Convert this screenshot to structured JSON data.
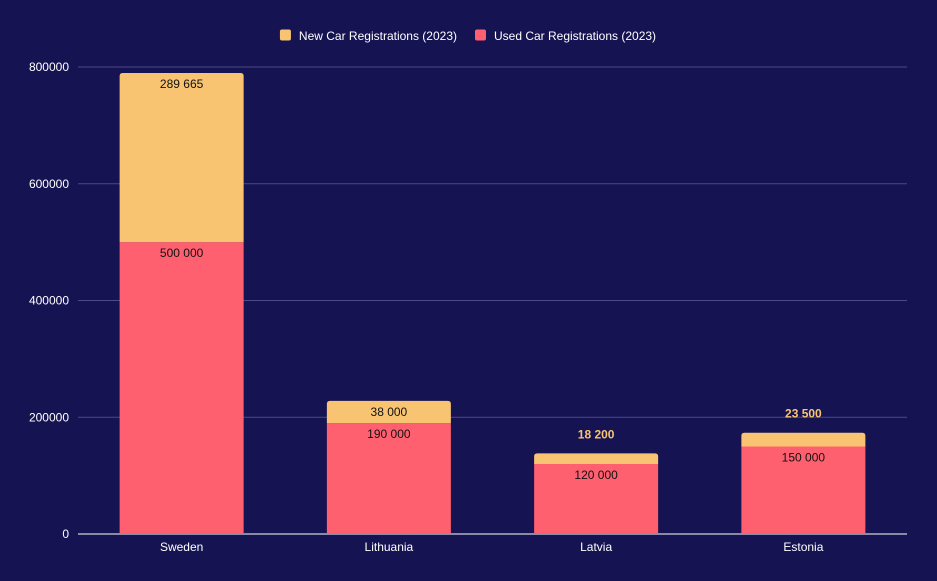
{
  "chart_data": {
    "type": "bar",
    "stacked": true,
    "categories": [
      "Sweden",
      "Lithuania",
      "Latvia",
      "Estonia"
    ],
    "series": [
      {
        "name": "Used Car Registrations (2023)",
        "color": "#ff6070",
        "values": [
          500000,
          190000,
          120000,
          150000
        ],
        "labels": [
          "500 000",
          "190 000",
          "120 000",
          "150 000"
        ]
      },
      {
        "name": "New Car Registrations (2023)",
        "color": "#f8c471",
        "values": [
          289665,
          38000,
          18200,
          23500
        ],
        "labels": [
          "289 665",
          "38 000",
          "18 200",
          "23 500"
        ]
      }
    ],
    "legend_order": [
      1,
      0
    ],
    "legend_position": "top",
    "ylim": [
      0,
      800000
    ],
    "yticks": [
      0,
      200000,
      400000,
      600000,
      800000
    ],
    "ytick_labels": [
      "0",
      "200000",
      "400000",
      "600000",
      "800000"
    ],
    "grid": true,
    "background_color": "#161352",
    "grid_color": "#4a4a88",
    "title": "",
    "xlabel": "",
    "ylabel": ""
  }
}
